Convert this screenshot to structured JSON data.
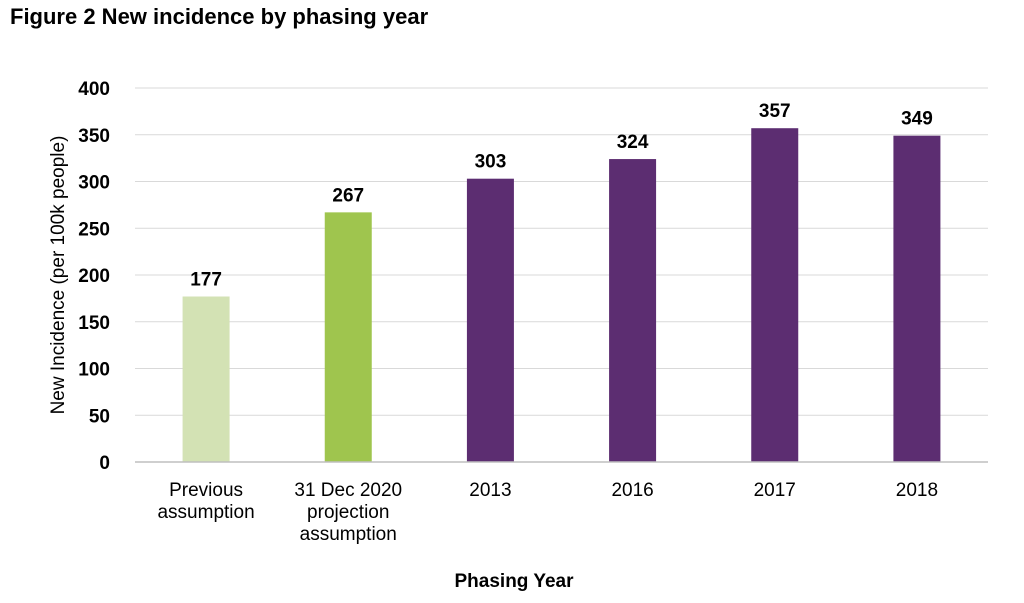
{
  "chart_data": {
    "type": "bar",
    "title": "Figure 2 New incidence by phasing year",
    "xlabel": "Phasing Year",
    "ylabel": "New Incidence (per 100k people)",
    "ylim": [
      0,
      400
    ],
    "yticks": [
      0,
      50,
      100,
      150,
      200,
      250,
      300,
      350,
      400
    ],
    "grid": true,
    "legend": "none",
    "categories": [
      [
        "Previous",
        "assumption"
      ],
      [
        "31 Dec 2020",
        "projection",
        "assumption"
      ],
      [
        "2013"
      ],
      [
        "2016"
      ],
      [
        "2017"
      ],
      [
        "2018"
      ]
    ],
    "values": [
      177,
      267,
      303,
      324,
      357,
      349
    ],
    "data_labels": [
      "177",
      "267",
      "303",
      "324",
      "357",
      "349"
    ],
    "bar_colors": [
      "#d3e2b4",
      "#9fc54e",
      "#5c2d71",
      "#5c2d71",
      "#5c2d71",
      "#5c2d71"
    ],
    "gridline_color": "#d9d9d9",
    "axis_color": "#bfbfbf"
  }
}
